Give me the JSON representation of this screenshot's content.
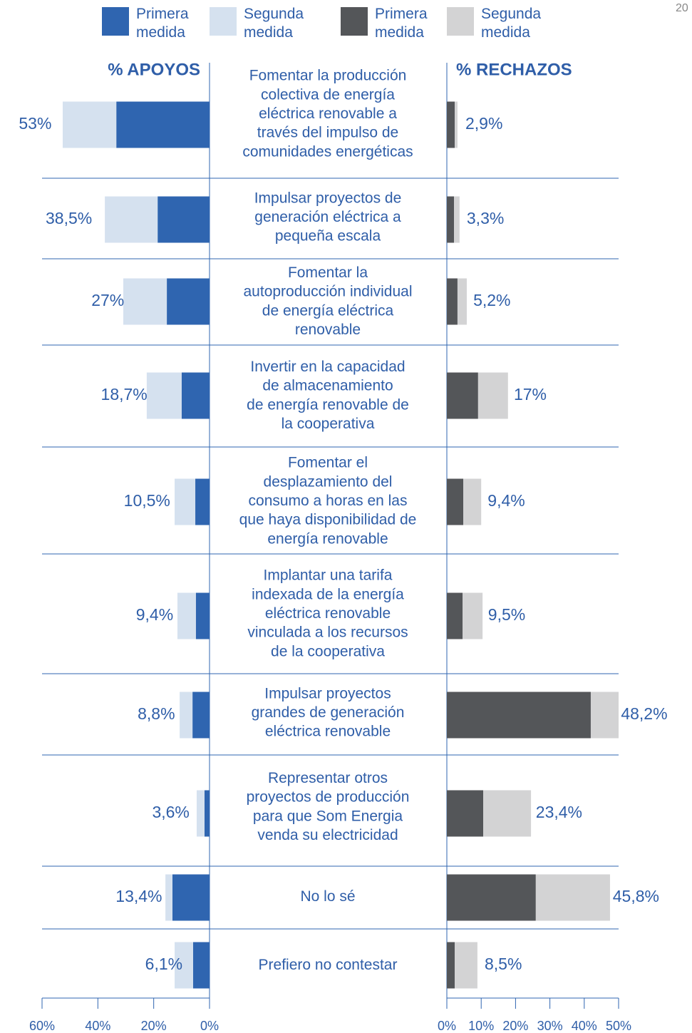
{
  "page_number": "20",
  "chart_data": [
    {
      "type": "bar",
      "orientation": "horizontal",
      "title": "% APOYOS",
      "categories": [
        "Fomentar la producción\ncolectiva de energía\neléctrica renovable a\ntravés del impulso de\ncomunidades energéticas",
        "Impulsar proyectos de\ngeneración eléctrica a\npequeña escala",
        "Fomentar la\nautoproducción individual\nde energía eléctrica\nrenovable",
        "Invertir en la capacidad\nde almacenamiento\nde energía renovable de\nla cooperativa",
        "Fomentar el\ndesplazamiento del\nconsumo a horas en las\nque haya disponibilidad de\nenergía renovable",
        "Implantar una tarifa\nindexada de la energía\neléctrica renovable\nvinculada a los recursos\nde la cooperativa",
        "Impulsar proyectos\ngrandes de generación\neléctrica renovable",
        "Representar otros\nproyectos de producción\npara que Som Energia\nvenda su electricidad",
        "No lo sé",
        "Prefiero no contestar"
      ],
      "series": [
        {
          "name": "Primera\nmedida",
          "color": "#2f65b0",
          "values": [
            33.4,
            18.6,
            15.3,
            10.0,
            5.1,
            4.9,
            6.1,
            1.8,
            13.3,
            5.9
          ]
        },
        {
          "name": "Segunda\nmedida",
          "color": "#d5e1ef",
          "values": [
            19.2,
            18.9,
            15.6,
            12.5,
            7.4,
            6.6,
            4.6,
            2.8,
            2.5,
            6.6
          ]
        }
      ],
      "totals": {
        "values": [
          53,
          38.5,
          27,
          18.7,
          10.5,
          9.4,
          8.8,
          3.6,
          13.4,
          6.1
        ],
        "value_labels": [
          "53%",
          "38,5%",
          "27%",
          "18,7%",
          "10,5%",
          "9,4%",
          "8,8%",
          "3,6%",
          "13,4%",
          "6,1%"
        ]
      },
      "xlim": [
        60,
        0
      ],
      "xticks": [
        {
          "value": 60,
          "label": "60%"
        },
        {
          "value": 40,
          "label": "40%"
        },
        {
          "value": 20,
          "label": "20%"
        },
        {
          "value": 0,
          "label": "0%"
        }
      ]
    },
    {
      "type": "bar",
      "orientation": "horizontal",
      "title": "% RECHAZOS",
      "series": [
        {
          "name": "Primera\nmedida",
          "color": "#545659",
          "values": [
            2.3,
            2.1,
            3.1,
            9.1,
            4.8,
            4.6,
            41.9,
            10.6,
            25.9,
            2.3
          ]
        },
        {
          "name": "Segunda\nmedida",
          "color": "#d3d3d4",
          "values": [
            0.8,
            1.6,
            2.7,
            8.7,
            5.2,
            5.8,
            8.1,
            13.9,
            21.6,
            6.6
          ]
        }
      ],
      "totals": {
        "values": [
          2.9,
          3.3,
          5.2,
          17,
          9.4,
          9.5,
          48.2,
          23.4,
          45.8,
          8.5
        ],
        "value_labels": [
          "2,9%",
          "3,3%",
          "5,2%",
          "17%",
          "9,4%",
          "9,5%",
          "48,2%",
          "23,4%",
          "45,8%",
          "8,5%"
        ]
      },
      "xlim": [
        0,
        50
      ],
      "xticks": [
        {
          "value": 0,
          "label": "0%"
        },
        {
          "value": 10,
          "label": "10%"
        },
        {
          "value": 20,
          "label": "20%"
        },
        {
          "value": 30,
          "label": "30%"
        },
        {
          "value": 40,
          "label": "40%"
        },
        {
          "value": 50,
          "label": "50%"
        }
      ]
    }
  ]
}
